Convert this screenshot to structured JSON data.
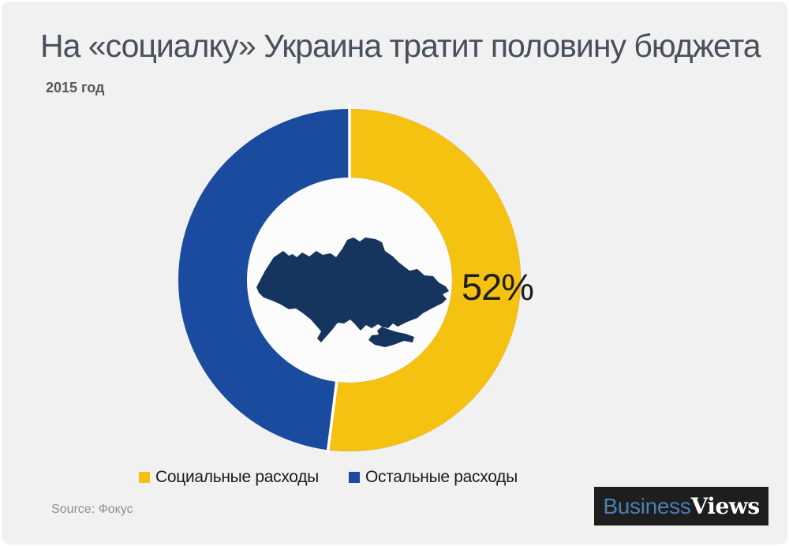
{
  "header": {
    "title": "На «социалку» Украина тратит половину бюджета",
    "subtitle": "2015 год"
  },
  "chart_data": {
    "type": "pie",
    "variant": "donut",
    "title": "На «социалку» Украина тратит половину бюджета",
    "subtitle": "2015 год",
    "categories": [
      "Социальные расходы",
      "Остальные расходы"
    ],
    "values": [
      52,
      48
    ],
    "slices": [
      {
        "label": "Социальные расходы",
        "value": 52,
        "color": "#F6C212",
        "data_label": "52%"
      },
      {
        "label": "Остальные расходы",
        "value": 48,
        "color": "#1B4B9E",
        "data_label": ""
      }
    ],
    "start_angle_deg": 0,
    "direction": "clockwise",
    "legend_position": "bottom",
    "donut_hole_color": "#FCFCFC",
    "segment_gap_color": "#FFFFFF",
    "center_graphic": "ukraine-map-silhouette",
    "center_graphic_color": "#16355E",
    "background_color": "#F1F1F2"
  },
  "footer": {
    "source": "Source: Фокус",
    "logo": {
      "part1": "Business",
      "part2": "Views",
      "bg": "#1F1E1E",
      "part1_color": "#4A7FB5",
      "part2_color": "#FFFFFF"
    }
  }
}
